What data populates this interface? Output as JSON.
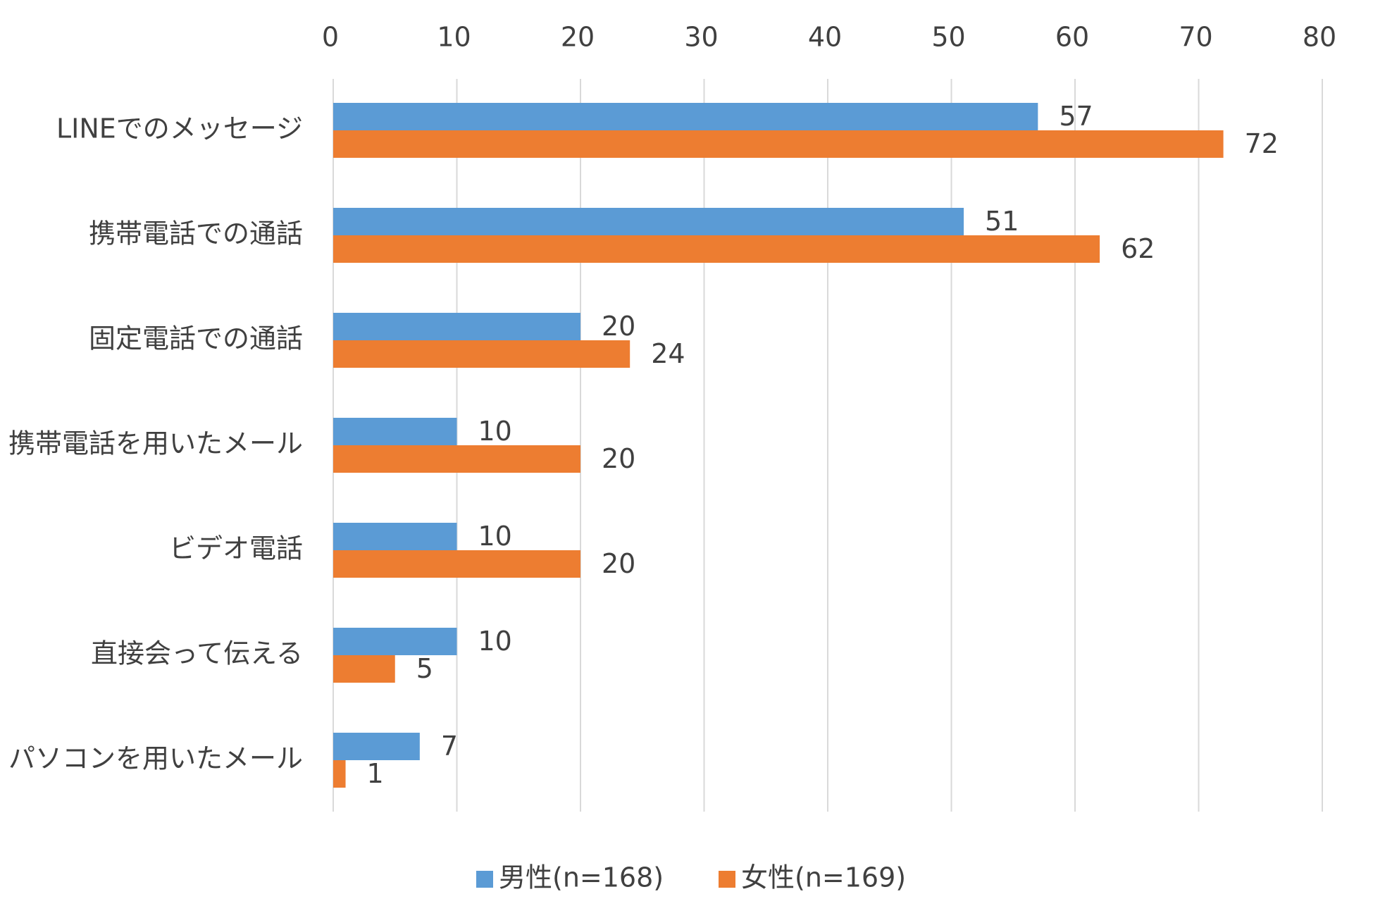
{
  "chart_data": {
    "type": "bar",
    "orientation": "horizontal",
    "categories": [
      "LINEでのメッセージ",
      "携帯電話での通話",
      "固定電話での通話",
      "携帯電話を用いたメール",
      "ビデオ電話",
      "直接会って伝える",
      "パソコンを用いたメール"
    ],
    "series": [
      {
        "name": "男性(n=168)",
        "values": [
          57,
          51,
          20,
          10,
          10,
          10,
          7
        ],
        "color": "#5B9BD5"
      },
      {
        "name": "女性(n=169)",
        "values": [
          72,
          62,
          24,
          20,
          20,
          5,
          1
        ],
        "color": "#ED7D31"
      }
    ],
    "xlim": [
      0,
      80
    ],
    "x_ticks": [
      "0",
      "10",
      "20",
      "30",
      "40",
      "50",
      "60",
      "70",
      "80"
    ],
    "x_axis_position": "top",
    "grid": true,
    "data_labels": true,
    "legend": "bottom",
    "title": "",
    "xlabel": "",
    "ylabel": ""
  }
}
